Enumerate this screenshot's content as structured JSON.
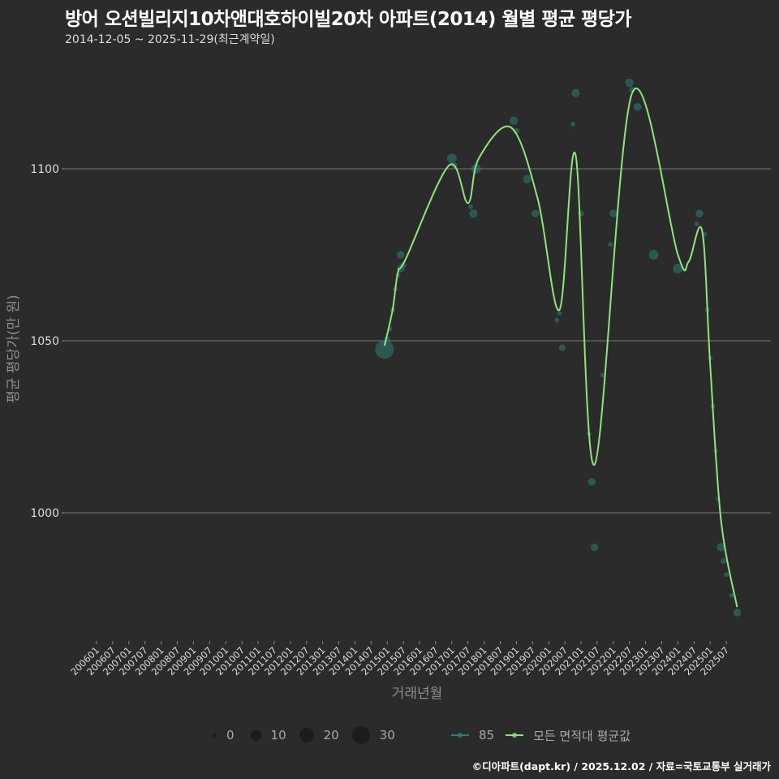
{
  "header": {
    "title": "방어 오션빌리지10차앤대호하이빌20차 아파트(2014) 월별 평균 평당가",
    "subtitle": "2014-12-05 ~ 2025-11-29(최근계약일)"
  },
  "caption": "©디아파트(dapt.kr) / 2025.12.02 / 자료=국토교통부 실거래가",
  "legend": {
    "size_items": [
      {
        "label": "0",
        "size": 5
      },
      {
        "label": "10",
        "size": 13
      },
      {
        "label": "20",
        "size": 18
      },
      {
        "label": "30",
        "size": 22
      }
    ],
    "series_items": [
      {
        "label": "85",
        "color": "#2a7f77"
      },
      {
        "label": "모든 면적대 평균값",
        "color": "#90e07c"
      }
    ]
  },
  "colors": {
    "background": "#2b2b2b",
    "grid": "#6a6a6a",
    "series_85": "#2e7d75",
    "average_line": "#8fe57d"
  },
  "chart_data": {
    "type": "line",
    "title": "방어 오션빌리지10차앤대호하이빌20차 아파트(2014) 월별 평균 평당가",
    "subtitle": "2014-12-05 ~ 2025-11-29(최근계약일)",
    "xlabel": "거래년월",
    "ylabel": "평균 평당가(만 원)",
    "ylim": [
      965,
      1140
    ],
    "yticks": [
      1000,
      1050,
      1100
    ],
    "xticks": [
      "200601",
      "200607",
      "200701",
      "200707",
      "200801",
      "200807",
      "200901",
      "200907",
      "201001",
      "201007",
      "201101",
      "201107",
      "201201",
      "201207",
      "201301",
      "201307",
      "201401",
      "201407",
      "201501",
      "201507",
      "201601",
      "201607",
      "201701",
      "201707",
      "201801",
      "201807",
      "201901",
      "201907",
      "202001",
      "202007",
      "202101",
      "202107",
      "202201",
      "202207",
      "202301",
      "202307",
      "202401",
      "202407",
      "202501",
      "202507"
    ],
    "grid": "horizontal major only",
    "legend_position": "bottom",
    "series": [
      {
        "name": "모든 면적대 평균값",
        "kind": "smoothed line",
        "x": [
          "201412",
          "201503",
          "201505",
          "201508",
          "201612",
          "201707",
          "201711",
          "201811",
          "201909",
          "202005",
          "202011",
          "202106",
          "202208",
          "202401",
          "202405",
          "202410",
          "202501",
          "202505",
          "202511"
        ],
        "values": [
          1048.6,
          1059,
          1070,
          1074,
          1101,
          1090,
          1103,
          1112,
          1091,
          1059,
          1104,
          1014,
          1122,
          1075,
          1073,
          1082,
          1043,
          998,
          972.6
        ]
      },
      {
        "name": "85",
        "kind": "bubble scatter (size = transaction count)",
        "points": [
          {
            "x": "201412",
            "y": 1047.5,
            "size": 30
          },
          {
            "x": "201501",
            "y": 1050.5,
            "size": 3
          },
          {
            "x": "201502",
            "y": 1053.5,
            "size": 2
          },
          {
            "x": "201503",
            "y": 1059,
            "size": 2
          },
          {
            "x": "201504",
            "y": 1065,
            "size": 2
          },
          {
            "x": "201505",
            "y": 1069,
            "size": 2
          },
          {
            "x": "201506",
            "y": 1071,
            "size": 5
          },
          {
            "x": "201506",
            "y": 1075,
            "size": 5
          },
          {
            "x": "201507",
            "y": 1072,
            "size": 3
          },
          {
            "x": "201701",
            "y": 1103,
            "size": 8
          },
          {
            "x": "201702",
            "y": 1101,
            "size": 3
          },
          {
            "x": "201708",
            "y": 1089,
            "size": 2
          },
          {
            "x": "201709",
            "y": 1087,
            "size": 6
          },
          {
            "x": "201710",
            "y": 1100,
            "size": 8
          },
          {
            "x": "201812",
            "y": 1114,
            "size": 6
          },
          {
            "x": "201901",
            "y": 1111,
            "size": 3
          },
          {
            "x": "201905",
            "y": 1097,
            "size": 6
          },
          {
            "x": "201908",
            "y": 1087,
            "size": 5
          },
          {
            "x": "202004",
            "y": 1056,
            "size": 2
          },
          {
            "x": "202005",
            "y": 1058,
            "size": 2
          },
          {
            "x": "202006",
            "y": 1048,
            "size": 4
          },
          {
            "x": "202010",
            "y": 1113,
            "size": 2
          },
          {
            "x": "202011",
            "y": 1122,
            "size": 6
          },
          {
            "x": "202101",
            "y": 1087,
            "size": 3
          },
          {
            "x": "202104",
            "y": 1023,
            "size": 2
          },
          {
            "x": "202105",
            "y": 1009,
            "size": 5
          },
          {
            "x": "202106",
            "y": 990,
            "size": 5
          },
          {
            "x": "202109",
            "y": 1040,
            "size": 2
          },
          {
            "x": "202112",
            "y": 1078,
            "size": 2
          },
          {
            "x": "202201",
            "y": 1087,
            "size": 5
          },
          {
            "x": "202207",
            "y": 1125,
            "size": 6
          },
          {
            "x": "202208",
            "y": 1123,
            "size": 3
          },
          {
            "x": "202210",
            "y": 1118,
            "size": 5
          },
          {
            "x": "202304",
            "y": 1075,
            "size": 8
          },
          {
            "x": "202401",
            "y": 1071,
            "size": 8
          },
          {
            "x": "202408",
            "y": 1084,
            "size": 2
          },
          {
            "x": "202409",
            "y": 1087,
            "size": 5
          },
          {
            "x": "202411",
            "y": 1081,
            "size": 2
          },
          {
            "x": "202412",
            "y": 1059,
            "size": 2
          },
          {
            "x": "202501",
            "y": 1045,
            "size": 2
          },
          {
            "x": "202502",
            "y": 1031,
            "size": 2
          },
          {
            "x": "202503",
            "y": 1018,
            "size": 2
          },
          {
            "x": "202504",
            "y": 1004,
            "size": 2
          },
          {
            "x": "202505",
            "y": 990,
            "size": 6
          },
          {
            "x": "202506",
            "y": 986,
            "size": 3
          },
          {
            "x": "202507",
            "y": 982,
            "size": 2
          },
          {
            "x": "202509",
            "y": 976,
            "size": 2
          },
          {
            "x": "202511",
            "y": 971,
            "size": 5
          }
        ]
      }
    ]
  }
}
